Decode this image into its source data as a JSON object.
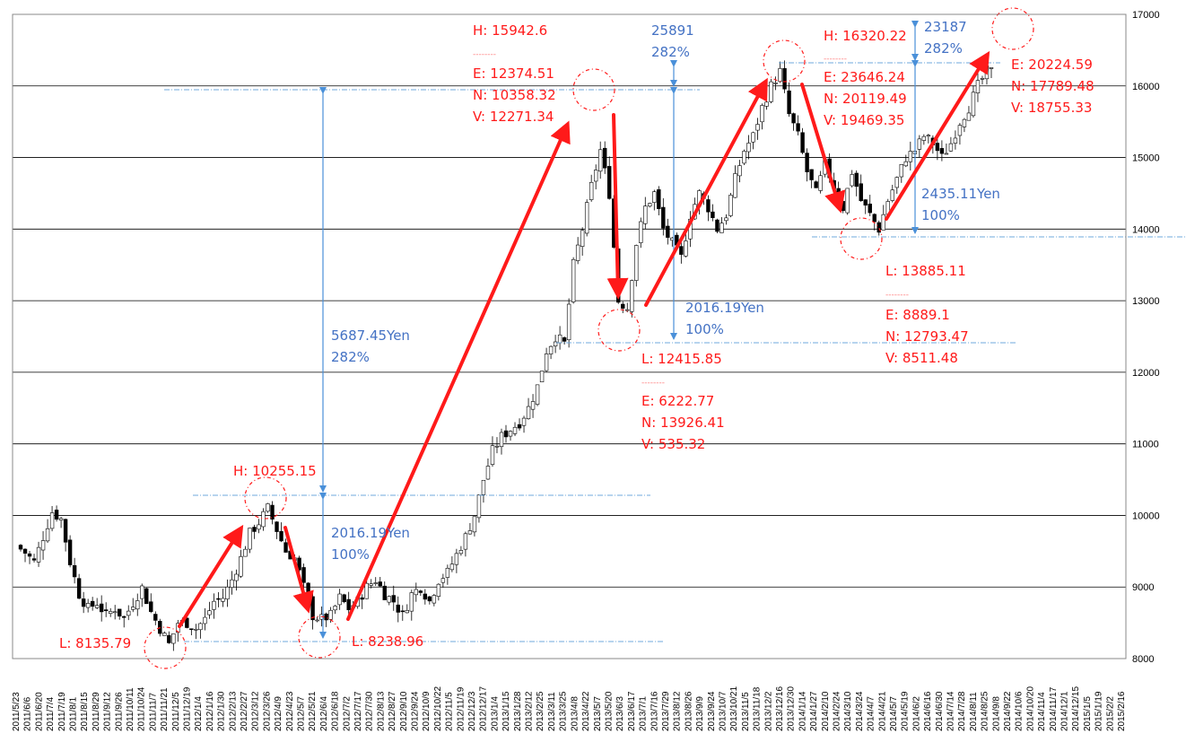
{
  "chart_data": {
    "type": "candlestick",
    "ylim": [
      8000,
      17000
    ],
    "yticks": [
      "8000",
      "9000",
      "10000",
      "11000",
      "12000",
      "13000",
      "14000",
      "15000",
      "16000",
      "17000"
    ],
    "grid": "horizontal",
    "colors": {
      "up_body": "#ffffff",
      "down_body": "#000000",
      "arrow": "#ff1a1a",
      "measure": "#4a90d9",
      "circle": "#ff1a1a",
      "annotation_red": "#ff1a1a",
      "annotation_blue": "#4472c4"
    },
    "x_dates": [
      "2011/5/23",
      "2011/6/6",
      "2011/6/20",
      "2011/7/4",
      "2011/7/19",
      "2011/8/1",
      "2011/8/15",
      "2011/8/29",
      "2011/9/12",
      "2011/9/26",
      "2011/10/11",
      "2011/10/24",
      "2011/11/7",
      "2011/11/21",
      "2011/12/5",
      "2011/12/19",
      "2012/1/4",
      "2012/1/16",
      "2012/1/30",
      "2012/2/13",
      "2012/2/27",
      "2012/3/12",
      "2012/3/26",
      "2012/4/9",
      "2012/4/23",
      "2012/5/7",
      "2012/5/21",
      "2012/6/4",
      "2012/6/18",
      "2012/7/2",
      "2012/7/17",
      "2012/7/30",
      "2012/8/13",
      "2012/8/27",
      "2012/9/10",
      "2012/9/24",
      "2012/10/9",
      "2012/10/22",
      "2012/11/5",
      "2012/11/19",
      "2012/12/3",
      "2012/12/17",
      "2013/1/4",
      "2013/1/15",
      "2013/1/28",
      "2013/2/12",
      "2013/2/25",
      "2013/3/11",
      "2013/3/25",
      "2013/4/8",
      "2013/4/22",
      "2013/5/7",
      "2013/5/20",
      "2013/6/3",
      "2013/6/17",
      "2013/7/1",
      "2013/7/16",
      "2013/7/29",
      "2013/8/12",
      "2013/8/26",
      "2013/9/9",
      "2013/9/24",
      "2013/10/7",
      "2013/10/21",
      "2013/11/5",
      "2013/11/18",
      "2013/12/2",
      "2013/12/16",
      "2013/12/30",
      "2014/1/14",
      "2014/1/27",
      "2014/2/10",
      "2014/2/24",
      "2014/3/10",
      "2014/3/24",
      "2014/4/7",
      "2014/4/21",
      "2014/5/7",
      "2014/5/19",
      "2014/6/2",
      "2014/6/16",
      "2014/6/30",
      "2014/7/14",
      "2014/7/28",
      "2014/8/11",
      "2014/8/25",
      "2014/9/8",
      "2014/9/22",
      "2014/10/6",
      "2014/10/20",
      "2014/11/4",
      "2014/11/17",
      "2014/12/1",
      "2014/12/15",
      "2015/1/5",
      "2015/1/19",
      "2015/2/2",
      "2015/2/16"
    ],
    "weekly_close_path": [
      [
        0,
        9580
      ],
      [
        2,
        9480
      ],
      [
        4,
        9350
      ],
      [
        6,
        9700
      ],
      [
        8,
        10050
      ],
      [
        10,
        9950
      ],
      [
        12,
        9350
      ],
      [
        14,
        8900
      ],
      [
        16,
        8700
      ],
      [
        18,
        8780
      ],
      [
        20,
        8600
      ],
      [
        22,
        8700
      ],
      [
        24,
        8560
      ],
      [
        26,
        8780
      ],
      [
        28,
        8990
      ],
      [
        30,
        8650
      ],
      [
        32,
        8420
      ],
      [
        34,
        8200
      ],
      [
        36,
        8500
      ],
      [
        38,
        8500
      ],
      [
        40,
        8420
      ],
      [
        42,
        8550
      ],
      [
        44,
        8800
      ],
      [
        46,
        8850
      ],
      [
        48,
        9100
      ],
      [
        50,
        9400
      ],
      [
        52,
        9750
      ],
      [
        54,
        9900
      ],
      [
        56,
        10100
      ],
      [
        58,
        9800
      ],
      [
        60,
        9500
      ],
      [
        62,
        9400
      ],
      [
        64,
        9000
      ],
      [
        66,
        8600
      ],
      [
        68,
        8550
      ],
      [
        70,
        8600
      ],
      [
        72,
        8850
      ],
      [
        74,
        8700
      ],
      [
        76,
        8800
      ],
      [
        78,
        9000
      ],
      [
        80,
        9100
      ],
      [
        82,
        8900
      ],
      [
        84,
        8800
      ],
      [
        86,
        8600
      ],
      [
        88,
        8900
      ],
      [
        90,
        9000
      ],
      [
        92,
        8800
      ],
      [
        94,
        9100
      ],
      [
        96,
        9200
      ],
      [
        98,
        9450
      ],
      [
        100,
        9700
      ],
      [
        102,
        10000
      ],
      [
        104,
        10500
      ],
      [
        106,
        10900
      ],
      [
        108,
        11100
      ],
      [
        110,
        11200
      ],
      [
        112,
        11300
      ],
      [
        114,
        11500
      ],
      [
        116,
        11800
      ],
      [
        118,
        12300
      ],
      [
        120,
        12500
      ],
      [
        122,
        12400
      ],
      [
        124,
        13500
      ],
      [
        126,
        14000
      ],
      [
        128,
        14600
      ],
      [
        130,
        15100
      ],
      [
        132,
        14500
      ],
      [
        134,
        13000
      ],
      [
        136,
        12900
      ],
      [
        138,
        13800
      ],
      [
        140,
        14300
      ],
      [
        142,
        14500
      ],
      [
        144,
        14000
      ],
      [
        146,
        13800
      ],
      [
        148,
        13600
      ],
      [
        150,
        14200
      ],
      [
        152,
        14500
      ],
      [
        154,
        14300
      ],
      [
        156,
        14000
      ],
      [
        158,
        14200
      ],
      [
        160,
        14700
      ],
      [
        162,
        15100
      ],
      [
        164,
        15300
      ],
      [
        166,
        15700
      ],
      [
        168,
        16000
      ],
      [
        170,
        16200
      ],
      [
        172,
        15600
      ],
      [
        174,
        15300
      ],
      [
        176,
        14800
      ],
      [
        178,
        14500
      ],
      [
        180,
        14900
      ],
      [
        182,
        14600
      ],
      [
        184,
        14300
      ],
      [
        186,
        14800
      ],
      [
        188,
        14400
      ],
      [
        190,
        14200
      ],
      [
        192,
        14000
      ],
      [
        194,
        14400
      ],
      [
        196,
        14700
      ],
      [
        198,
        15000
      ],
      [
        200,
        15100
      ],
      [
        202,
        15300
      ],
      [
        204,
        15200
      ],
      [
        206,
        15000
      ],
      [
        208,
        15200
      ],
      [
        210,
        15500
      ],
      [
        212,
        15700
      ],
      [
        214,
        16000
      ],
      [
        216,
        16200
      ]
    ],
    "key_levels": [
      {
        "label": "L: 8135.79",
        "value": 8135.79
      },
      {
        "label": "H: 10255.15",
        "value": 10255.15
      },
      {
        "label": "L: 8238.96",
        "value": 8238.96
      },
      {
        "label": "H: 15942.6",
        "value": 15942.6
      },
      {
        "label": "L: 12415.85",
        "value": 12415.85
      },
      {
        "label": "H: 16320.22",
        "value": 16320.22
      },
      {
        "label": "L: 13885.11",
        "value": 13885.11
      },
      {
        "label": "E: 20224.59",
        "value": 20224.59
      }
    ]
  },
  "annotations": {
    "low1": "L: 8135.79",
    "high1": "H: 10255.15",
    "low2": "L: 8238.96",
    "m1_amount": "2016.19Yen",
    "m1_pct": "100%",
    "m2_amount": "5687.45Yen",
    "m2_pct": "282%",
    "high2": "H: 15942.6",
    "high2_dash": "--------",
    "high2_e": "E: 12374.51",
    "high2_n": "N: 10358.32",
    "high2_v": "V: 12271.34",
    "m3_amount": "25891",
    "m3_pct": "282%",
    "m4_amount": "2016.19Yen",
    "m4_pct": "100%",
    "low3": "L: 12415.85",
    "low3_dash": "--------",
    "low3_e": "E: 6222.77",
    "low3_n": "N: 13926.41",
    "low3_v": "V: 535.32",
    "high3": "H: 16320.22",
    "high3_dash": "--------",
    "high3_e": "E: 23646.24",
    "high3_n": "N: 20119.49",
    "high3_v": "V: 19469.35",
    "m5_amount": "23187",
    "m5_pct": "282%",
    "m6_amount": "2435.11Yen",
    "m6_pct": "100%",
    "low4": "L: 13885.11",
    "low4_dash": "--------",
    "low4_e": "E: 8889.1",
    "low4_n": "N: 12793.47",
    "low4_v": "V: 8511.48",
    "proj_e": "E: 20224.59",
    "proj_n": "N: 17789.48",
    "proj_v": "V: 18755.33"
  }
}
